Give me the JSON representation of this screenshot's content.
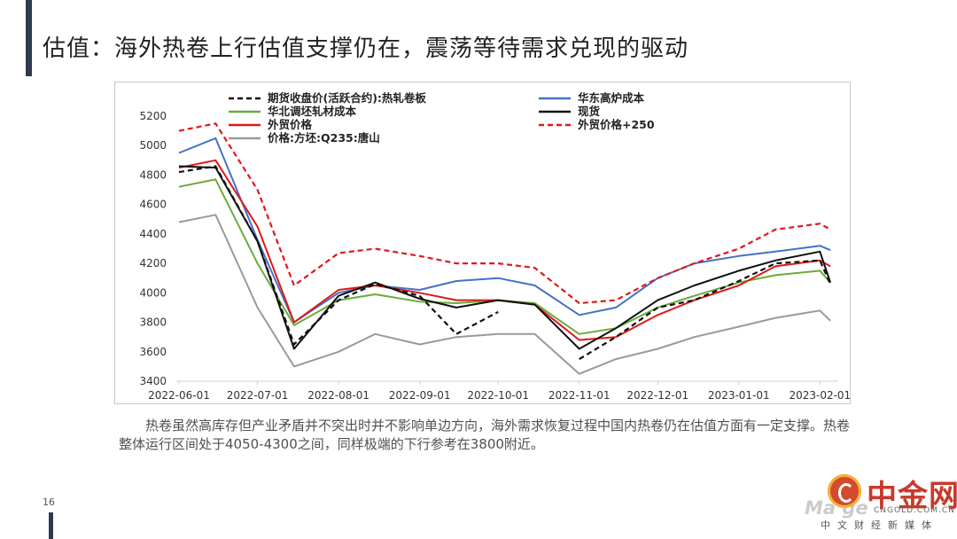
{
  "slide": {
    "title": "估值：海外热卷上行估值支撑仍在，震荡等待需求兑现的驱动",
    "caption": "热卷虽然高库存但产业矛盾并不突出时并不影响单边方向，海外需求恢复过程中国内热卷仍在估值方面有一定支撑。热卷整体运行区间处于4050-4300之间，同样极端的下行参考在3800附近。",
    "page_number": "16"
  },
  "logo": {
    "name": "中金网",
    "site": "CNGOLD.COM.CN",
    "tagline": "中文财经新媒体",
    "watermark": "Ma      ge"
  },
  "colors": {
    "futures": "#111111",
    "east_blast": "#4472c4",
    "north_cold": "#6aab3a",
    "spot": "#111111",
    "foreign": "#e01818",
    "foreign_plus": "#e01818",
    "tangshan": "#9a9a9a"
  },
  "chart_data": {
    "type": "line",
    "title": "",
    "xlabel": "",
    "ylabel": "",
    "ylim": [
      3400,
      5200
    ],
    "yticks": [
      3400,
      3600,
      3800,
      4000,
      4200,
      4400,
      4600,
      4800,
      5000,
      5200
    ],
    "xticks": [
      "2022-06-01",
      "2022-07-01",
      "2022-08-01",
      "2022-09-01",
      "2022-10-01",
      "2022-11-01",
      "2022-12-01",
      "2023-01-01",
      "2023-02-01"
    ],
    "x": [
      "2022-06-01",
      "2022-06-15",
      "2022-07-01",
      "2022-07-15",
      "2022-08-01",
      "2022-08-15",
      "2022-09-01",
      "2022-09-15",
      "2022-10-01",
      "2022-10-15",
      "2022-11-01",
      "2022-11-15",
      "2022-12-01",
      "2022-12-15",
      "2023-01-01",
      "2023-01-15",
      "2023-02-01",
      "2023-02-05"
    ],
    "legend_position": "top",
    "series": [
      {
        "name": "期货收盘价(活跃合约):热轧卷板",
        "style": "dashed",
        "color_key": "futures",
        "values": [
          4820,
          4860,
          4350,
          3650,
          3950,
          4060,
          3980,
          3720,
          3870,
          null,
          3550,
          3700,
          3900,
          3950,
          4080,
          4200,
          4220,
          4060
        ]
      },
      {
        "name": "华东高炉成本",
        "style": "solid",
        "color_key": "east_blast",
        "values": [
          4950,
          5050,
          4360,
          3800,
          4000,
          4050,
          4020,
          4080,
          4100,
          4050,
          3850,
          3900,
          4100,
          4200,
          4250,
          4280,
          4320,
          4290
        ]
      },
      {
        "name": "华北调坯轧材成本",
        "style": "solid",
        "color_key": "north_cold",
        "values": [
          4720,
          4770,
          4200,
          3780,
          3950,
          3990,
          3940,
          3930,
          3950,
          3930,
          3720,
          3760,
          3900,
          3980,
          4070,
          4120,
          4150,
          4070
        ]
      },
      {
        "name": "现货",
        "style": "solid",
        "color_key": "spot",
        "values": [
          4860,
          4850,
          4350,
          3620,
          3980,
          4070,
          3960,
          3900,
          3950,
          3920,
          3620,
          3760,
          3950,
          4050,
          4150,
          4220,
          4280,
          4070
        ]
      },
      {
        "name": "外贸价格",
        "style": "solid",
        "color_key": "foreign",
        "values": [
          4850,
          4900,
          4450,
          3800,
          4020,
          4050,
          4000,
          3950,
          3950,
          3920,
          3680,
          3700,
          3850,
          3950,
          4050,
          4180,
          4220,
          4180
        ]
      },
      {
        "name": "外贸价格+250",
        "style": "dashed",
        "color_key": "foreign_plus",
        "values": [
          5100,
          5150,
          4700,
          4050,
          4270,
          4300,
          4250,
          4200,
          4200,
          4170,
          3930,
          3950,
          4100,
          4200,
          4300,
          4430,
          4470,
          4430
        ]
      },
      {
        "name": "价格:方坯:Q235:唐山",
        "style": "solid",
        "color_key": "tangshan",
        "values": [
          4480,
          4530,
          3900,
          3500,
          3600,
          3720,
          3650,
          3700,
          3720,
          3720,
          3450,
          3550,
          3620,
          3700,
          3770,
          3830,
          3880,
          3810
        ]
      }
    ]
  }
}
